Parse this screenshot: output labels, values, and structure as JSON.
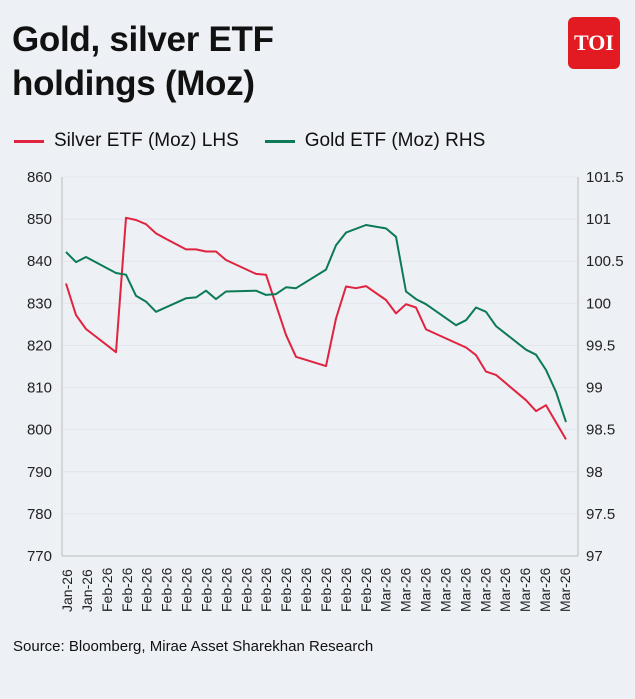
{
  "header": {
    "title_line1": "Gold, silver ETF",
    "title_line2": "holdings (Moz)",
    "logo_text": "TOI"
  },
  "footer": {
    "source": "Source: Bloomberg, Mirae Asset Sharekhan Research"
  },
  "colors": {
    "silver": "#e0233f",
    "gold": "#0b7a55",
    "logo": "#e21b23"
  },
  "chart_data": {
    "type": "line",
    "title": "Gold, silver ETF holdings (Moz)",
    "xlabel": "",
    "x_unit": "trading day index",
    "categories": [
      "Jan-26",
      "Jan-26",
      "Feb-26",
      "Feb-26",
      "Feb-26",
      "Feb-26",
      "Feb-26",
      "Feb-26",
      "Feb-26",
      "Feb-26",
      "Feb-26",
      "Feb-26",
      "Feb-26",
      "Feb-26",
      "Feb-26",
      "Feb-26",
      "Mar-26",
      "Mar-26",
      "Mar-26",
      "Mar-26",
      "Mar-26",
      "Mar-26",
      "Mar-26",
      "Mar-26",
      "Mar-26",
      "Mar-26"
    ],
    "xlim": [
      0,
      50
    ],
    "y_left": {
      "label": "Silver ETF (Moz) LHS",
      "ylim": [
        770,
        860
      ],
      "ticks": [
        860,
        850,
        840,
        830,
        820,
        810,
        800,
        790,
        780,
        770
      ]
    },
    "y_right": {
      "label": "Gold ETF (Moz) RHS",
      "ylim": [
        97,
        101.5
      ],
      "ticks": [
        "101.5",
        "101",
        "100.5",
        "100",
        "99.5",
        "99",
        "98.5",
        "98",
        "97.5",
        "97"
      ]
    },
    "legend_position": "top",
    "series": [
      {
        "name": "Silver ETF (Moz) LHS",
        "axis": "left",
        "x": [
          0,
          1,
          2,
          5,
          6,
          7,
          8,
          9,
          10,
          12,
          13,
          14,
          15,
          16,
          19,
          20,
          22,
          23,
          26,
          27,
          28,
          29,
          30,
          32,
          33,
          34,
          35,
          36,
          40,
          41,
          42,
          43,
          46,
          47,
          48,
          50
        ],
        "values": [
          834.7,
          827.2,
          823.9,
          818.4,
          850.3,
          849.8,
          848.8,
          846.6,
          845.3,
          842.8,
          842.8,
          842.3,
          842.3,
          840.3,
          837.0,
          836.8,
          822.5,
          817.3,
          815.1,
          826.4,
          834.0,
          833.6,
          834.1,
          830.8,
          827.6,
          829.8,
          829.0,
          823.8,
          819.5,
          817.7,
          813.8,
          813.0,
          807.0,
          804.4,
          805.8,
          797.7
        ]
      },
      {
        "name": "Gold ETF (Moz) RHS",
        "axis": "right",
        "x": [
          0,
          1,
          2,
          5,
          6,
          7,
          8,
          9,
          12,
          13,
          14,
          15,
          16,
          19,
          20,
          21,
          22,
          23,
          26,
          27,
          28,
          30,
          32,
          33,
          34,
          35,
          36,
          39,
          40,
          41,
          42,
          43,
          46,
          47,
          48,
          49,
          50
        ],
        "values": [
          100.61,
          100.49,
          100.55,
          100.36,
          100.34,
          100.09,
          100.02,
          99.9,
          100.06,
          100.07,
          100.15,
          100.05,
          100.14,
          100.15,
          100.1,
          100.11,
          100.19,
          100.18,
          100.4,
          100.69,
          100.84,
          100.93,
          100.89,
          100.79,
          100.14,
          100.05,
          99.99,
          99.74,
          99.8,
          99.95,
          99.9,
          99.73,
          99.45,
          99.39,
          99.21,
          98.95,
          98.59
        ]
      }
    ]
  }
}
